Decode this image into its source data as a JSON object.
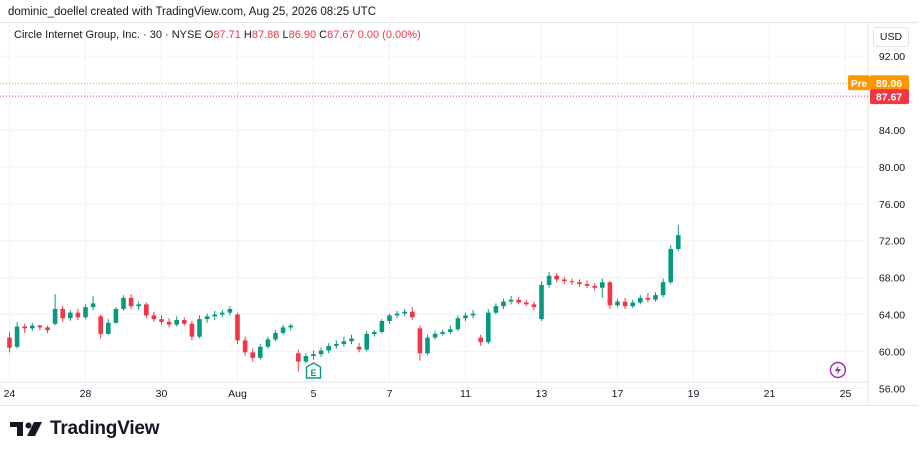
{
  "header": {
    "attribution": "dominic_doellel created with TradingView.com, Aug 25, 2026 08:25 UTC"
  },
  "legend": {
    "symbol": "Circle Internet Group, Inc. · 30 · NYSE",
    "open_label": "O",
    "open": "87.71",
    "high_label": "H",
    "high": "87.88",
    "low_label": "L",
    "low": "86.90",
    "close_label": "C",
    "close": "87.67",
    "change": "0.00 (0.00%)"
  },
  "currency_button": "USD",
  "footer": {
    "brand": "TradingView"
  },
  "chart_data": {
    "type": "candlestick",
    "y_axis": {
      "ticks": [
        56,
        60,
        64,
        68,
        72,
        76,
        80,
        84,
        88,
        92
      ],
      "tick_labels": [
        "56.00",
        "60.00",
        "64.00",
        "68.00",
        "72.00",
        "76.00",
        "80.00",
        "84.00",
        "88.00",
        "92.00"
      ],
      "range": [
        54.3,
        95.7
      ],
      "side": "right"
    },
    "x_axis": {
      "labels": [
        {
          "text": "24",
          "i": 0
        },
        {
          "text": "28",
          "i": 10
        },
        {
          "text": "30",
          "i": 20
        },
        {
          "text": "Aug",
          "i": 30
        },
        {
          "text": "5",
          "i": 40
        },
        {
          "text": "7",
          "i": 50
        },
        {
          "text": "11",
          "i": 60
        },
        {
          "text": "13",
          "i": 70
        },
        {
          "text": "17",
          "i": 80
        },
        {
          "text": "19",
          "i": 90
        },
        {
          "text": "21",
          "i": 100
        },
        {
          "text": "25",
          "i": 110
        }
      ]
    },
    "pre_market": {
      "label": "Pre",
      "value": 89.06,
      "color": "#ff9800"
    },
    "last_price": {
      "value": 87.67,
      "color": "#f23645"
    },
    "markers": [
      {
        "type": "earnings",
        "text": "E",
        "i": 40
      },
      {
        "type": "split",
        "i": 109
      }
    ],
    "up_color": "#089981",
    "down_color": "#f23645",
    "candles": [
      [
        61.5,
        62.1,
        59.9,
        60.4
      ],
      [
        60.5,
        63.2,
        60.3,
        62.7
      ],
      [
        62.7,
        63.0,
        62.0,
        62.5
      ],
      [
        62.5,
        63.1,
        62.2,
        62.8
      ],
      [
        62.8,
        62.9,
        62.3,
        62.6
      ],
      [
        62.6,
        62.8,
        62.0,
        62.3
      ],
      [
        63.0,
        66.2,
        62.8,
        64.6
      ],
      [
        64.6,
        64.9,
        63.2,
        63.6
      ],
      [
        63.6,
        64.5,
        63.3,
        64.2
      ],
      [
        64.2,
        64.6,
        63.4,
        63.7
      ],
      [
        63.7,
        65.1,
        63.5,
        64.8
      ],
      [
        64.8,
        66.0,
        64.5,
        65.2
      ],
      [
        63.8,
        64.0,
        61.4,
        61.9
      ],
      [
        61.9,
        63.5,
        61.8,
        63.1
      ],
      [
        63.1,
        64.8,
        63.0,
        64.6
      ],
      [
        64.6,
        66.1,
        64.4,
        65.8
      ],
      [
        65.8,
        66.2,
        64.6,
        64.9
      ],
      [
        64.9,
        65.4,
        64.5,
        65.1
      ],
      [
        65.1,
        65.3,
        63.6,
        63.9
      ],
      [
        63.9,
        64.3,
        63.2,
        63.5
      ],
      [
        63.5,
        63.9,
        62.9,
        63.2
      ],
      [
        63.2,
        63.6,
        62.6,
        62.9
      ],
      [
        62.9,
        63.8,
        62.7,
        63.4
      ],
      [
        63.4,
        63.7,
        62.8,
        63.0
      ],
      [
        63.0,
        63.3,
        61.2,
        61.6
      ],
      [
        61.6,
        63.9,
        61.4,
        63.5
      ],
      [
        63.5,
        64.1,
        63.1,
        63.8
      ],
      [
        63.8,
        64.4,
        63.4,
        64.0
      ],
      [
        64.0,
        64.5,
        63.7,
        64.2
      ],
      [
        64.2,
        64.9,
        63.9,
        64.6
      ],
      [
        64.0,
        64.2,
        60.8,
        61.2
      ],
      [
        61.2,
        61.6,
        59.5,
        59.9
      ],
      [
        59.9,
        60.3,
        58.9,
        59.3
      ],
      [
        59.3,
        60.8,
        59.1,
        60.5
      ],
      [
        60.5,
        61.6,
        60.3,
        61.3
      ],
      [
        61.3,
        62.3,
        61.1,
        62.0
      ],
      [
        62.0,
        62.9,
        61.8,
        62.6
      ],
      [
        62.6,
        63.0,
        62.3,
        62.8
      ],
      [
        59.8,
        60.2,
        57.8,
        58.9
      ],
      [
        58.9,
        59.8,
        58.7,
        59.5
      ],
      [
        59.5,
        60.1,
        59.1,
        59.7
      ],
      [
        59.7,
        60.4,
        59.4,
        60.1
      ],
      [
        60.1,
        60.9,
        59.8,
        60.6
      ],
      [
        60.6,
        61.2,
        60.3,
        60.8
      ],
      [
        60.8,
        61.6,
        60.5,
        61.1
      ],
      [
        61.1,
        61.8,
        60.8,
        61.4
      ],
      [
        60.5,
        60.9,
        59.9,
        60.2
      ],
      [
        60.2,
        62.2,
        60.0,
        61.9
      ],
      [
        61.9,
        62.3,
        61.6,
        62.1
      ],
      [
        62.1,
        63.5,
        61.9,
        63.3
      ],
      [
        63.3,
        64.1,
        63.0,
        63.9
      ],
      [
        63.9,
        64.4,
        63.6,
        64.1
      ],
      [
        64.1,
        64.6,
        63.8,
        64.3
      ],
      [
        64.3,
        64.8,
        63.4,
        63.7
      ],
      [
        62.5,
        62.8,
        59.0,
        59.8
      ],
      [
        59.8,
        61.8,
        59.6,
        61.5
      ],
      [
        61.5,
        62.2,
        61.3,
        61.9
      ],
      [
        61.9,
        62.4,
        61.7,
        62.1
      ],
      [
        62.1,
        62.8,
        61.9,
        62.4
      ],
      [
        62.4,
        63.9,
        62.2,
        63.6
      ],
      [
        63.6,
        64.2,
        63.3,
        63.9
      ],
      [
        63.9,
        64.5,
        63.6,
        64.1
      ],
      [
        61.5,
        61.8,
        60.6,
        61.0
      ],
      [
        61.0,
        64.6,
        60.8,
        64.2
      ],
      [
        64.2,
        65.2,
        64.0,
        64.9
      ],
      [
        64.9,
        65.7,
        64.6,
        65.4
      ],
      [
        65.4,
        66.0,
        65.1,
        65.6
      ],
      [
        65.6,
        65.9,
        65.1,
        65.3
      ],
      [
        65.3,
        65.6,
        64.9,
        65.1
      ],
      [
        65.1,
        65.4,
        64.5,
        64.8
      ],
      [
        63.5,
        67.6,
        63.3,
        67.2
      ],
      [
        67.2,
        68.6,
        66.9,
        68.2
      ],
      [
        68.2,
        68.5,
        67.5,
        67.8
      ],
      [
        67.8,
        68.1,
        67.3,
        67.6
      ],
      [
        67.6,
        67.9,
        67.2,
        67.5
      ],
      [
        67.5,
        67.8,
        67.0,
        67.3
      ],
      [
        67.3,
        67.7,
        66.9,
        67.1
      ],
      [
        67.1,
        67.4,
        66.6,
        66.9
      ],
      [
        66.9,
        67.9,
        65.8,
        67.5
      ],
      [
        67.5,
        67.6,
        64.6,
        65.0
      ],
      [
        65.0,
        65.7,
        64.8,
        65.4
      ],
      [
        65.4,
        65.8,
        64.6,
        64.9
      ],
      [
        64.9,
        65.6,
        64.7,
        65.3
      ],
      [
        65.3,
        66.1,
        65.1,
        65.8
      ],
      [
        65.8,
        66.3,
        65.3,
        65.6
      ],
      [
        65.6,
        66.4,
        65.4,
        66.1
      ],
      [
        66.1,
        67.9,
        65.9,
        67.5
      ],
      [
        67.5,
        71.5,
        67.3,
        71.1
      ],
      [
        71.1,
        73.7,
        70.9,
        72.6
      ]
    ]
  }
}
